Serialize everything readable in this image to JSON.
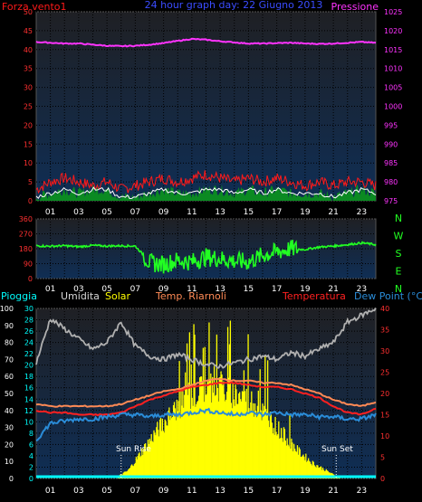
{
  "title": "24 hour graph day: 22 Giugno 2013",
  "colors": {
    "background": "#000000",
    "plot_top": "#1f2024",
    "plot_bottom": "#0f2e55",
    "grid": "#000000",
    "wind": "#ff1a1a",
    "gust_area": "#0b8a22",
    "wind_avg": "#ffffff",
    "pressure": "#ff33ff",
    "direction": "#22ff22",
    "humidity": "#b0b0b0",
    "solar": "#ffff00",
    "heat_index": "#ff8a55",
    "temperature": "#ff2020",
    "dew_point": "#2a8cd8",
    "rain": "#00ffff",
    "marker_text": "#ffffff"
  },
  "x_tick_labels": [
    "01",
    "03",
    "05",
    "07",
    "09",
    "11",
    "13",
    "15",
    "17",
    "19",
    "21",
    "23"
  ],
  "panel1": {
    "left_label": "Forza vento1",
    "right_label": "Pressione",
    "left_ticks": [
      "0",
      "5",
      "10",
      "15",
      "20",
      "25",
      "30",
      "35",
      "40",
      "45",
      "50"
    ],
    "right_ticks": [
      "975",
      "980",
      "985",
      "990",
      "995",
      "1000",
      "1005",
      "1010",
      "1015",
      "1020",
      "1025"
    ]
  },
  "panel2": {
    "left_ticks": [
      "0",
      "90",
      "180",
      "270",
      "360"
    ],
    "compass": [
      "N",
      "W",
      "S",
      "E",
      "N"
    ]
  },
  "panel3": {
    "legend": {
      "rain": "Pioggia",
      "humidity": "Umidita",
      "solar": "Solar",
      "heat_index": "Temp. Riarnoli",
      "temperature": "Temperatura",
      "dew_point": "Dew Point (°C)"
    },
    "humidity_ticks": [
      "0",
      "10",
      "20",
      "30",
      "40",
      "50",
      "60",
      "70",
      "80",
      "90",
      "100"
    ],
    "rain_ticks": [
      "0",
      "2",
      "4",
      "6",
      "8",
      "10",
      "12",
      "14",
      "16",
      "18",
      "20",
      "22",
      "24",
      "26",
      "28",
      "30"
    ],
    "temp_ticks": [
      "0",
      "5",
      "10",
      "15",
      "20",
      "25",
      "30",
      "35",
      "40"
    ],
    "sun_rise": "Sun Rise",
    "sun_set": "Sun Set"
  },
  "chart_data": [
    {
      "type": "line",
      "name": "wind_pressure",
      "x_unit": "hour",
      "xlim": [
        0,
        24
      ],
      "ylim_left": [
        0,
        50
      ],
      "ylim_right": [
        975,
        1025
      ],
      "series": [
        {
          "name": "Pressione",
          "axis": "right",
          "x": [
            0,
            1,
            2,
            3,
            4,
            5,
            6,
            7,
            8,
            9,
            10,
            11,
            12,
            13,
            14,
            15,
            16,
            17,
            18,
            19,
            20,
            21,
            22,
            23,
            24
          ],
          "values": [
            1017.0,
            1016.8,
            1016.6,
            1016.6,
            1016.3,
            1016.0,
            1015.9,
            1016.0,
            1016.3,
            1016.7,
            1017.3,
            1017.8,
            1017.6,
            1017.2,
            1016.9,
            1016.6,
            1016.6,
            1016.7,
            1016.8,
            1016.6,
            1016.5,
            1016.6,
            1016.8,
            1017.0,
            1016.8
          ]
        },
        {
          "name": "gust",
          "axis": "left",
          "x": [
            0,
            1,
            2,
            3,
            4,
            5,
            6,
            7,
            8,
            9,
            10,
            11,
            12,
            13,
            14,
            15,
            16,
            17,
            18,
            19,
            20,
            21,
            22,
            23,
            24
          ],
          "values": [
            3,
            5,
            6,
            5,
            4,
            5,
            3,
            4,
            5,
            6,
            5,
            6,
            7,
            6,
            5,
            6,
            5,
            6,
            5,
            4,
            5,
            4,
            5,
            5,
            4
          ]
        },
        {
          "name": "wind",
          "axis": "left",
          "x": [
            0,
            1,
            2,
            3,
            4,
            5,
            6,
            7,
            8,
            9,
            10,
            11,
            12,
            13,
            14,
            15,
            16,
            17,
            18,
            19,
            20,
            21,
            22,
            23,
            24
          ],
          "values": [
            1,
            2,
            3,
            2,
            3,
            3,
            1,
            1,
            2,
            3,
            2,
            2,
            3,
            3,
            2,
            3,
            2,
            3,
            2,
            2,
            2,
            1,
            2,
            3,
            2
          ]
        }
      ]
    },
    {
      "type": "line",
      "name": "wind_direction",
      "x_unit": "hour",
      "xlim": [
        0,
        24
      ],
      "ylim": [
        0,
        360
      ],
      "series": [
        {
          "name": "direction",
          "x": [
            0,
            1,
            2,
            3,
            4,
            5,
            6,
            7,
            7.5,
            8,
            9,
            10,
            11,
            12,
            13,
            14,
            15,
            16,
            17,
            18,
            19,
            20,
            21,
            22,
            23,
            24
          ],
          "values": [
            198,
            195,
            198,
            192,
            200,
            196,
            198,
            196,
            150,
            95,
            85,
            110,
            100,
            130,
            120,
            105,
            100,
            140,
            160,
            180,
            175,
            190,
            196,
            205,
            215,
            205
          ]
        }
      ]
    },
    {
      "type": "line",
      "name": "temperature_humidity_solar",
      "x_unit": "hour",
      "xlim": [
        0,
        24
      ],
      "ylim_humidity": [
        0,
        100
      ],
      "ylim_rain": [
        0,
        30
      ],
      "ylim_temp": [
        0,
        40
      ],
      "series": [
        {
          "name": "Umidita",
          "axis": "humidity",
          "x": [
            0,
            1,
            2,
            3,
            4,
            5,
            6,
            7,
            8,
            9,
            10,
            11,
            12,
            13,
            14,
            15,
            16,
            17,
            18,
            19,
            20,
            21,
            22,
            23,
            24
          ],
          "values": [
            68,
            94,
            88,
            82,
            76,
            80,
            92,
            78,
            72,
            70,
            73,
            70,
            67,
            66,
            68,
            70,
            72,
            70,
            74,
            72,
            76,
            80,
            92,
            96,
            100
          ]
        },
        {
          "name": "Solar",
          "axis": "temp",
          "x": [
            0,
            5.5,
            6.5,
            7.5,
            8.5,
            9.5,
            10.5,
            11.5,
            12.5,
            13.5,
            14.5,
            15.5,
            16.5,
            17.5,
            18.5,
            19.5,
            20.5,
            21.5,
            24
          ],
          "values": [
            0,
            0,
            2,
            7,
            12,
            16,
            20,
            22,
            24,
            22,
            21,
            19,
            15,
            11,
            7,
            4,
            2,
            0,
            0
          ]
        },
        {
          "name": "Temp. Riarnoli",
          "axis": "temp",
          "x": [
            0,
            1,
            2,
            3,
            4,
            5,
            6,
            7,
            8,
            9,
            10,
            11,
            12,
            13,
            14,
            15,
            16,
            17,
            18,
            19,
            20,
            21,
            22,
            23,
            24
          ],
          "values": [
            17.5,
            17,
            17,
            17,
            17,
            17,
            17.5,
            18.5,
            19.5,
            20.5,
            21,
            22,
            23,
            23.5,
            23,
            23,
            22.5,
            22.5,
            22,
            21,
            20,
            18.5,
            17.5,
            17,
            18
          ]
        },
        {
          "name": "Temperatura",
          "axis": "temp",
          "x": [
            0,
            1,
            2,
            3,
            4,
            5,
            6,
            7,
            8,
            9,
            10,
            11,
            12,
            13,
            14,
            15,
            16,
            17,
            18,
            19,
            20,
            21,
            22,
            23,
            24
          ],
          "values": [
            16,
            15.5,
            15.5,
            15,
            15,
            15,
            15.5,
            17,
            18.5,
            19.5,
            20.5,
            21.5,
            22,
            22.5,
            22.5,
            22,
            21.5,
            21.5,
            21,
            20,
            19,
            17,
            15.5,
            15,
            16.5
          ]
        },
        {
          "name": "Dew Point",
          "axis": "temp",
          "x": [
            0,
            1,
            2,
            3,
            4,
            5,
            6,
            7,
            8,
            9,
            10,
            11,
            12,
            13,
            14,
            15,
            16,
            17,
            18,
            19,
            20,
            21,
            22,
            23,
            24
          ],
          "values": [
            9,
            13,
            13.5,
            14,
            14,
            14.5,
            15,
            15,
            14.5,
            15,
            15,
            15.5,
            16,
            15.5,
            15,
            15.5,
            15,
            15.5,
            15,
            15,
            14.5,
            14.5,
            14,
            14,
            15
          ]
        },
        {
          "name": "Pioggia",
          "axis": "rain",
          "x": [
            0,
            24
          ],
          "values": [
            0,
            0
          ]
        }
      ],
      "sun_rise_hour": 6.0,
      "sun_set_hour": 21.2
    }
  ]
}
